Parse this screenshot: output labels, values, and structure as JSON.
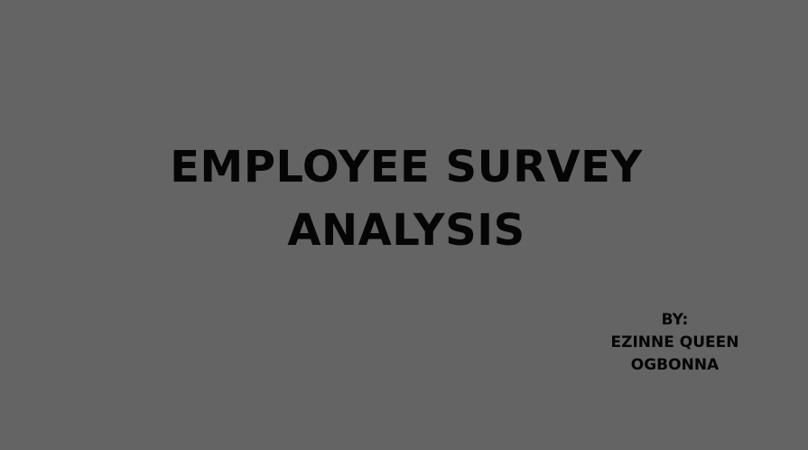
{
  "slide": {
    "background_color": "#646464",
    "text_color": "#050505",
    "title": {
      "line1": "EMPLOYEE SURVEY",
      "line2": "ANALYSIS"
    },
    "author": {
      "prefix": "BY:",
      "line1": "EZINNE QUEEN",
      "line2": "OGBONNA"
    }
  }
}
